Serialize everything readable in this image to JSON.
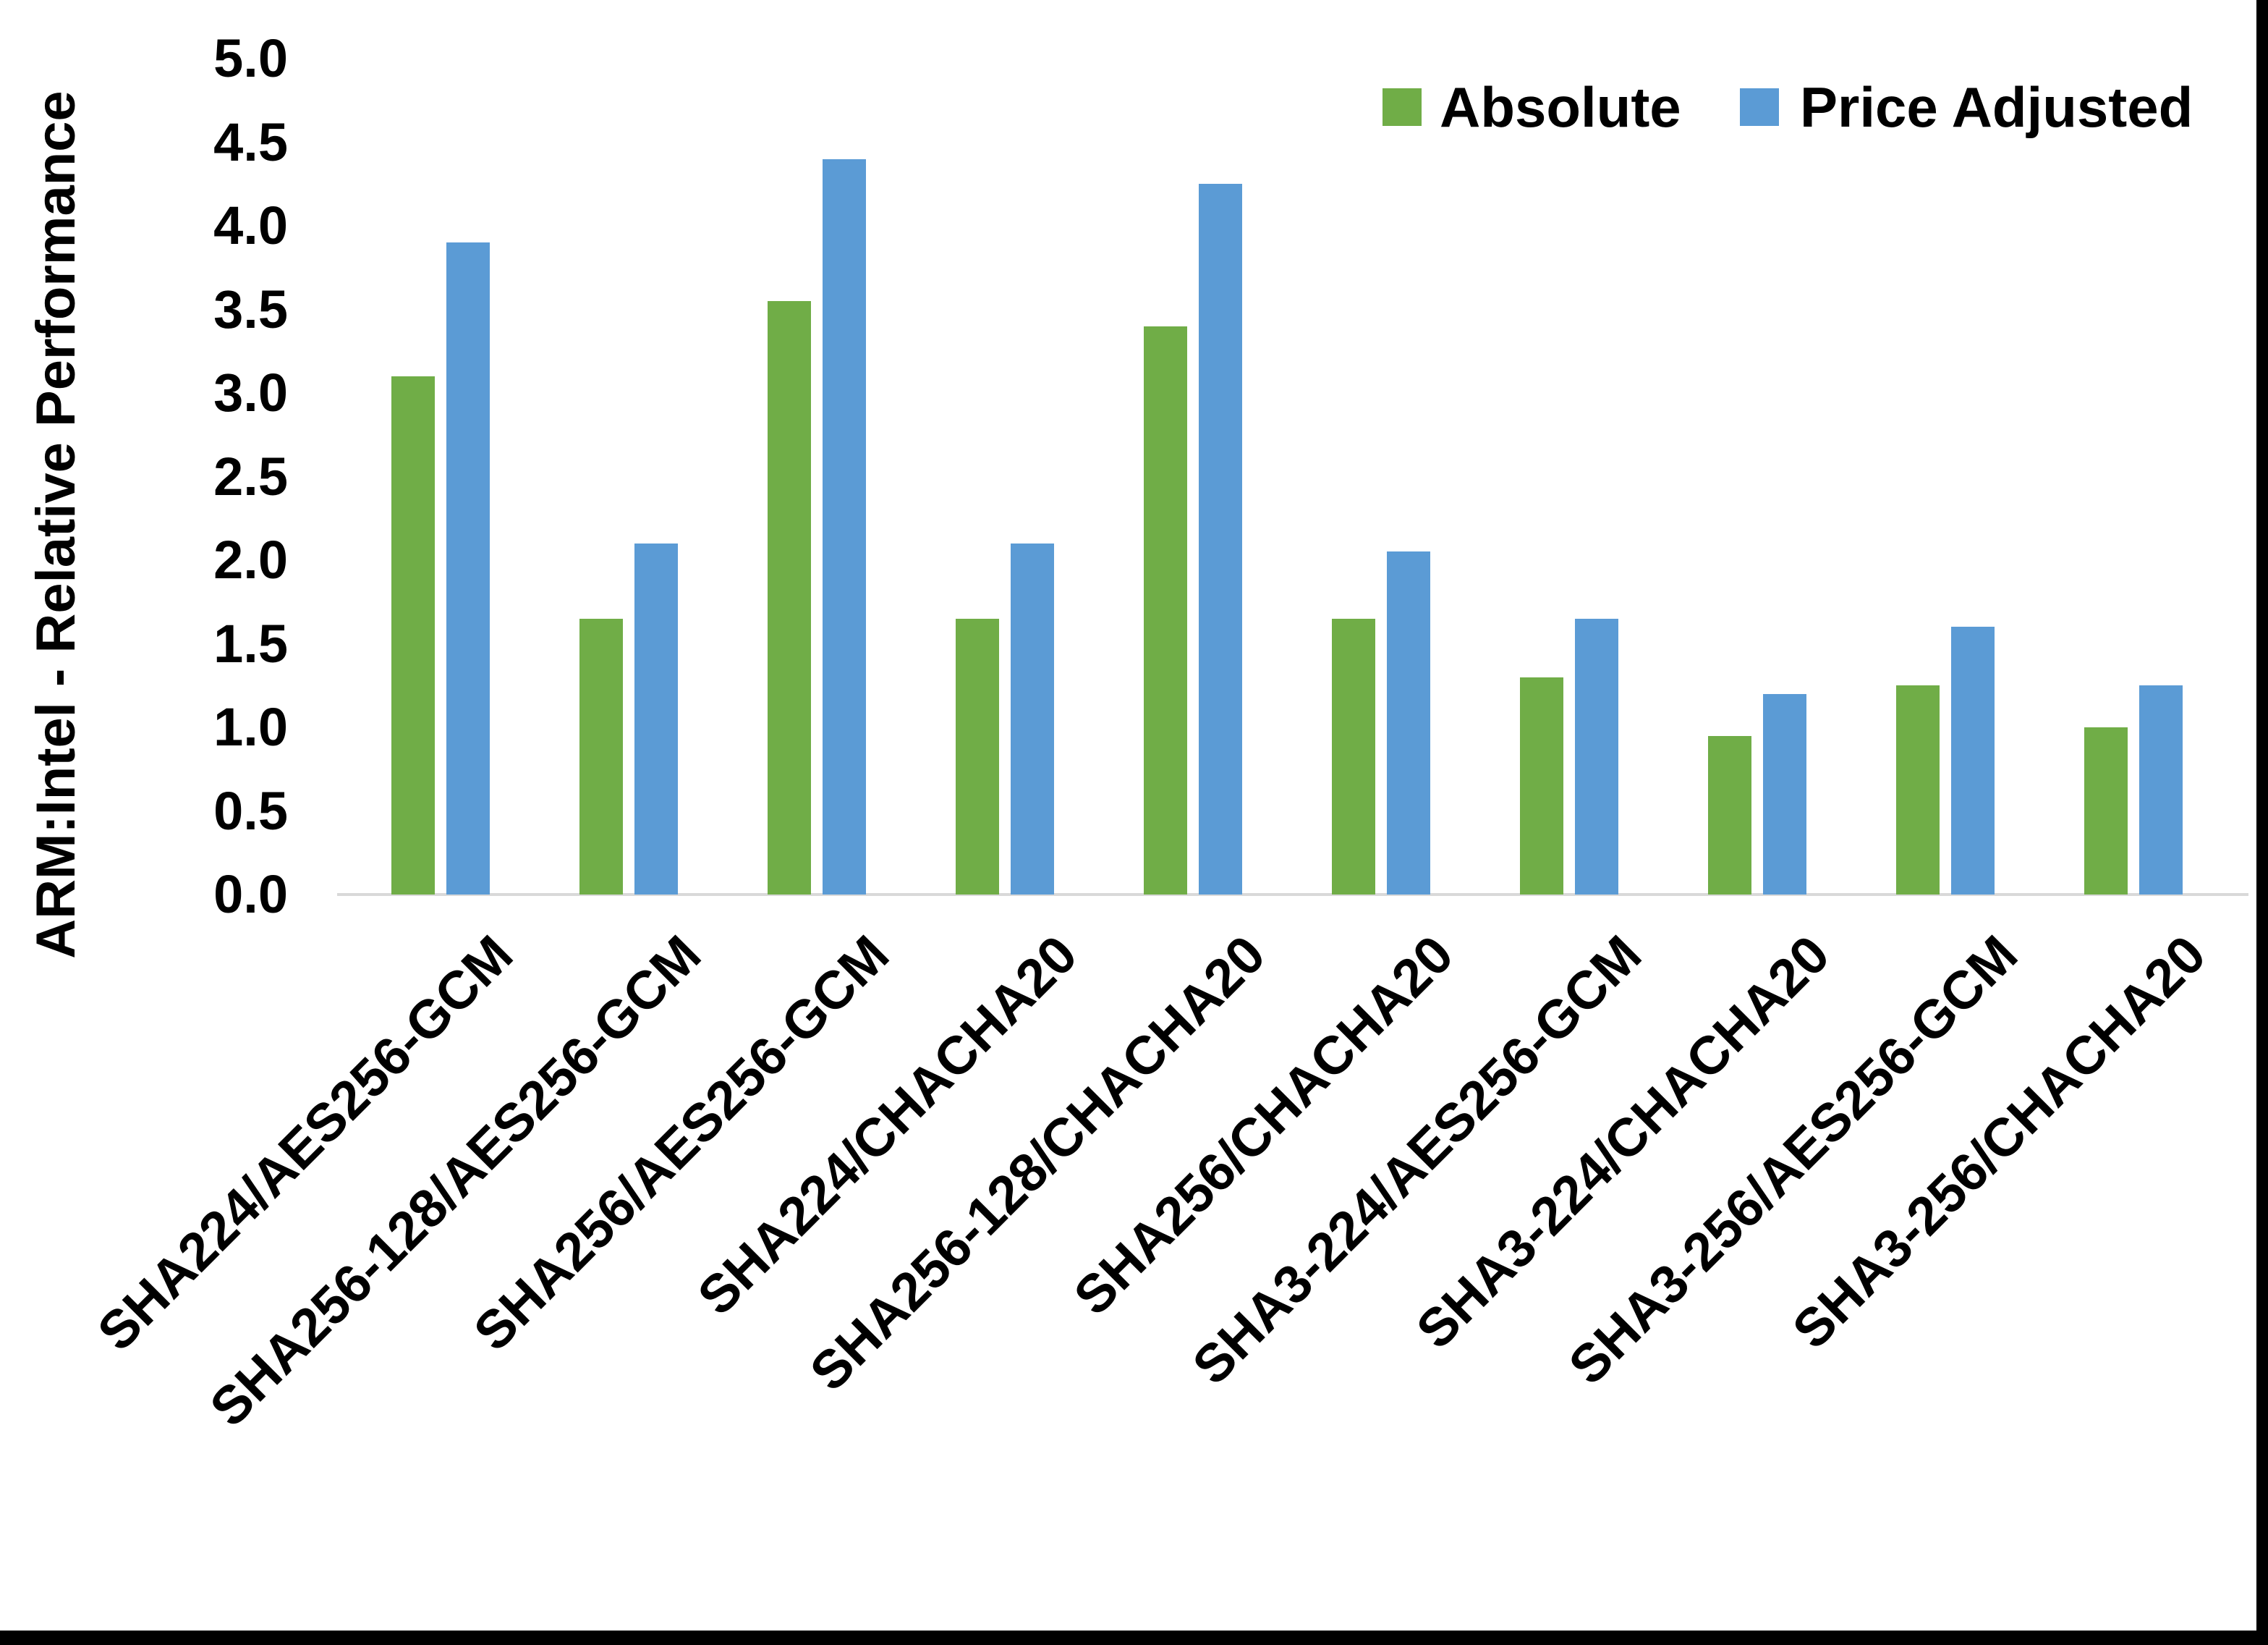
{
  "chart_data": {
    "type": "bar",
    "title": "",
    "ylabel": "ARM:Intel - Relative Performance",
    "xlabel": "",
    "ylim": [
      0.0,
      5.0
    ],
    "ytick_step": 0.5,
    "ytick_labels": [
      "0.0",
      "0.5",
      "1.0",
      "1.5",
      "2.0",
      "2.5",
      "3.0",
      "3.5",
      "4.0",
      "4.5",
      "5.0"
    ],
    "grid": false,
    "legend_position": "top-right",
    "categories": [
      "SHA224/AES256-GCM",
      "SHA256-128/AES256-GCM",
      "SHA256/AES256-GCM",
      "SHA224/CHACHA20",
      "SHA256-128/CHACHA20",
      "SHA256/CHACHA20",
      "SHA3-224/AES256-GCM",
      "SHA3-224/CHACHA20",
      "SHA3-256/AES256-GCM",
      "SHA3-256/CHACHA20"
    ],
    "series": [
      {
        "name": "Absolute",
        "color": "#70AD47",
        "values": [
          3.1,
          1.65,
          3.55,
          1.65,
          3.4,
          1.65,
          1.3,
          0.95,
          1.25,
          1.0
        ]
      },
      {
        "name": "Price Adjusted",
        "color": "#5B9BD5",
        "values": [
          3.9,
          2.1,
          4.4,
          2.1,
          4.25,
          2.05,
          1.65,
          1.2,
          1.6,
          1.25
        ]
      }
    ]
  },
  "axis": {
    "line_color": "#D9D9D9",
    "text_color": "#000000"
  },
  "frame": {
    "edge_color": "#000000"
  }
}
